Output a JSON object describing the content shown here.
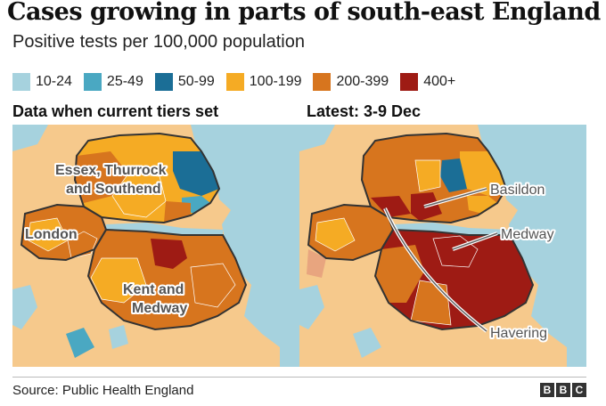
{
  "header": {
    "title": "Cases growing in parts of south-east England",
    "subtitle": "Positive tests per 100,000 population"
  },
  "legend": [
    {
      "label": "10-24",
      "color": "#a6d2de"
    },
    {
      "label": "25-49",
      "color": "#4aa8c2"
    },
    {
      "label": "50-99",
      "color": "#1b6e96"
    },
    {
      "label": "100-199",
      "color": "#f5ab24"
    },
    {
      "label": "200-399",
      "color": "#d7751e"
    },
    {
      "label": "400+",
      "color": "#9e1b14"
    }
  ],
  "panels": {
    "left": {
      "title": "Data when current tiers set",
      "labels": {
        "essex_1": "Essex, Thurrock",
        "essex_2": "and Southend",
        "london": "London",
        "kent_1": "Kent and",
        "kent_2": "Medway"
      }
    },
    "right": {
      "title": "Latest: 3-9 Dec",
      "callouts": {
        "basildon": "Basildon",
        "medway": "Medway",
        "havering": "Havering"
      }
    }
  },
  "colors": {
    "sea": "#a6d2de",
    "unshaded_land": "#f6c98c",
    "outline": "#333333"
  },
  "footer": {
    "source": "Source: Public Health England",
    "brand": [
      "B",
      "B",
      "C"
    ]
  }
}
